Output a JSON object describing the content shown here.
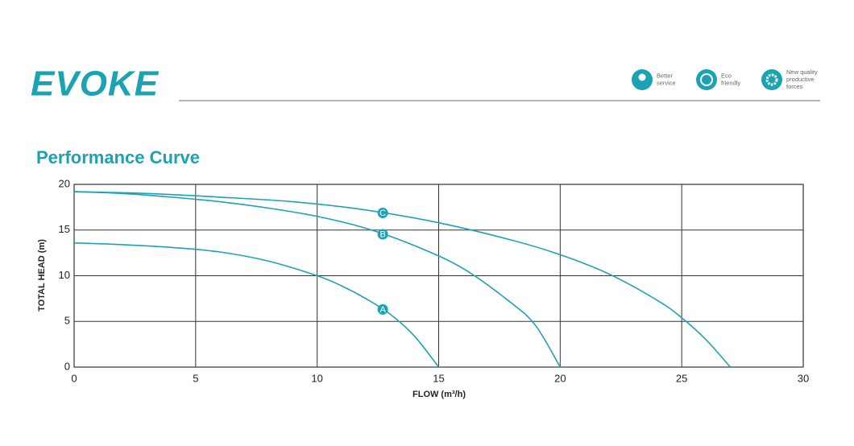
{
  "header": {
    "logo": "EVOKE",
    "badges": [
      "Better service",
      "Eco friendly",
      "New quality productive forces"
    ]
  },
  "chart_data": {
    "type": "line",
    "title": "Performance Curve",
    "x_label": "FLOW (m³/h)",
    "y_label": "TOTAL  HEAD (m)",
    "xlim": [
      0,
      30
    ],
    "xticks": [
      0,
      5,
      10,
      15,
      20,
      25,
      30
    ],
    "ylim": [
      0,
      20
    ],
    "yticks": [
      0,
      5,
      10,
      15,
      20
    ],
    "grid": true,
    "series": [
      {
        "name": "A",
        "color": "#1ba3b3",
        "x": [
          0,
          2,
          4,
          6,
          8,
          10,
          11,
          12,
          13,
          14,
          15
        ],
        "values": [
          13.6,
          13.4,
          13.1,
          12.6,
          11.6,
          10.0,
          8.9,
          7.5,
          5.8,
          3.4,
          0
        ]
      },
      {
        "name": "B",
        "color": "#1ba3b3",
        "x": [
          0,
          2,
          4,
          6,
          8,
          10,
          12,
          14,
          16,
          18,
          19,
          20
        ],
        "values": [
          19.2,
          19.0,
          18.6,
          18.1,
          17.4,
          16.5,
          15.2,
          13.3,
          10.8,
          7.0,
          4.5,
          0
        ]
      },
      {
        "name": "C",
        "color": "#1ba3b3",
        "x": [
          0,
          3,
          6,
          9,
          12,
          15,
          18,
          20,
          22,
          24,
          25,
          26,
          27
        ],
        "values": [
          19.2,
          19.0,
          18.6,
          18.1,
          17.2,
          15.8,
          13.9,
          12.3,
          10.2,
          7.3,
          5.4,
          3.0,
          0
        ]
      }
    ]
  }
}
